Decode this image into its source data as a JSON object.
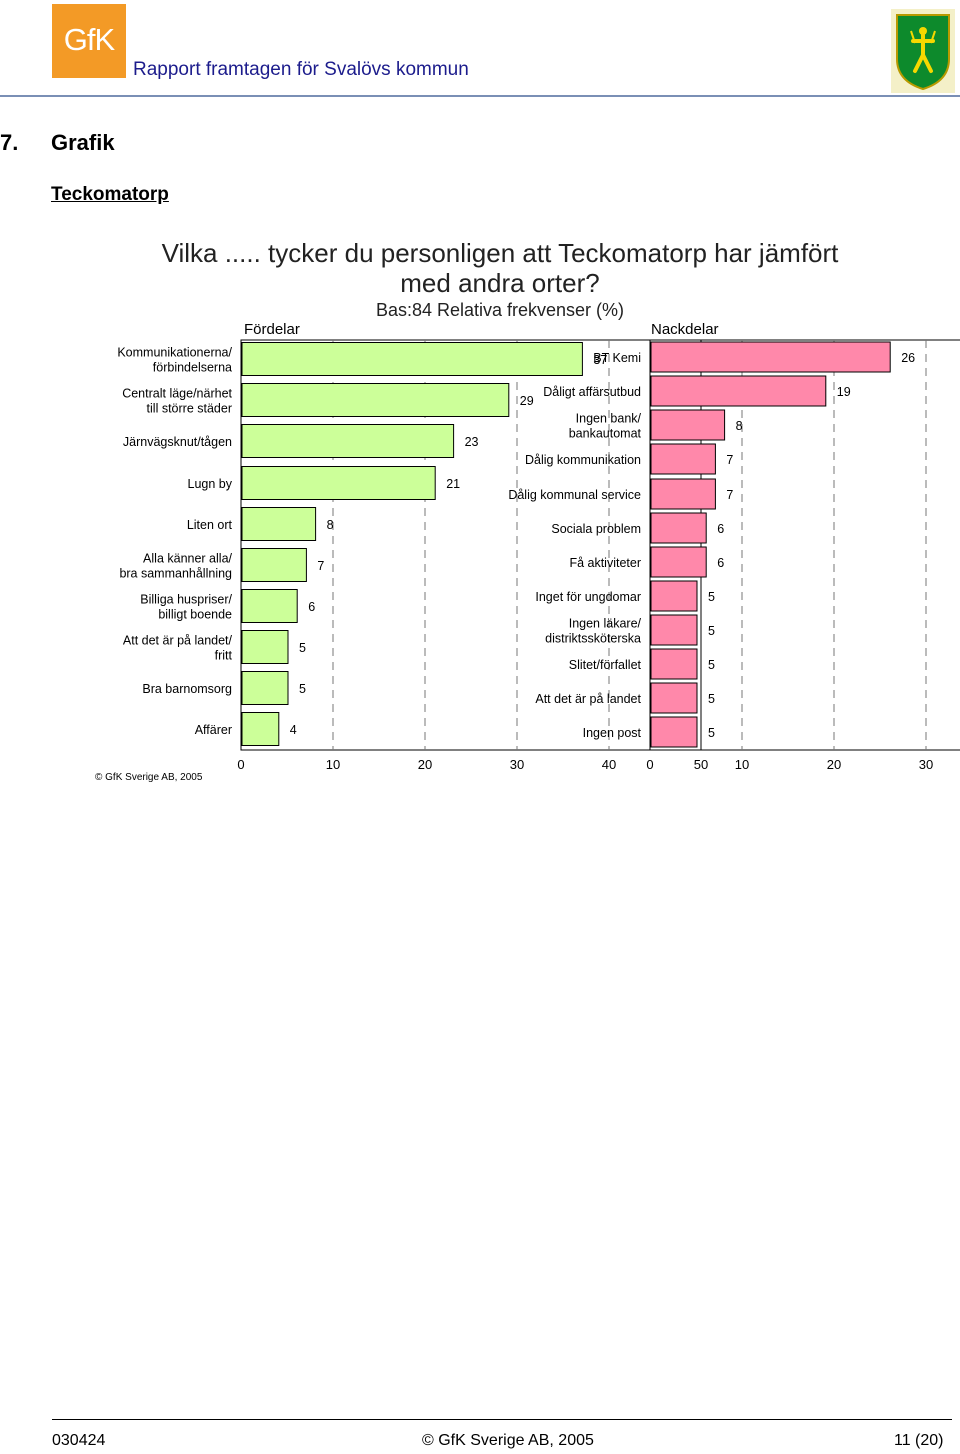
{
  "header": {
    "logo_text": "GfK",
    "report_title": "Rapport framtagen för Svalövs kommun"
  },
  "section": {
    "number": "7.",
    "title": "Grafik",
    "subtitle": "Teckomatorp"
  },
  "chart_title": "Vilka ..... tycker du personligen att Teckomatorp har jämfört med andra orter?",
  "chart_subtitle": "Bas:84 Relativa frekvenser (%)",
  "chart_data": [
    {
      "type": "bar",
      "orientation": "horizontal",
      "title": "Fördelar",
      "xlim": [
        0,
        50
      ],
      "xticks": [
        "0",
        "10",
        "20",
        "30",
        "40",
        "50"
      ],
      "grid": true,
      "categories": [
        "Kommunikationerna/\nförbindelserna",
        "Centralt läge/närhet\ntill större städer",
        "Järnvägsknut/tågen",
        "Lugn by",
        "Liten ort",
        "Alla känner alla/\nbra sammanhållning",
        "Billiga huspriser/\nbilligt boende",
        "Att det är på landet/\nfritt",
        "Bra barnomsorg",
        "Affärer"
      ],
      "values": [
        37,
        29,
        23,
        21,
        8,
        7,
        6,
        5,
        5,
        4
      ],
      "bar_color": "#ccff99"
    },
    {
      "type": "bar",
      "orientation": "horizontal",
      "title": "Nackdelar",
      "xlim": [
        0,
        50
      ],
      "xticks": [
        "0",
        "10",
        "20",
        "30",
        "40",
        "50"
      ],
      "grid": true,
      "categories": [
        "BT Kemi",
        "Dåligt affärsutbud",
        "Ingen bank/\nbankautomat",
        "Dålig kommunikation",
        "Dålig kommunal service",
        "Sociala problem",
        "Få aktiviteter",
        "Inget för ungdomar",
        "Ingen läkare/\ndistriktssköterska",
        "Slitet/förfallet",
        "Att det är på landet",
        "Ingen post"
      ],
      "values": [
        26,
        19,
        8,
        7,
        7,
        6,
        6,
        5,
        5,
        5,
        5,
        5
      ],
      "bar_color": "#ff88aa"
    }
  ],
  "chart_copyright": "© GfK Sverige AB, 2005",
  "footer": {
    "left": "030424",
    "center": "© GfK Sverige AB, 2005",
    "right": "11 (20)"
  }
}
